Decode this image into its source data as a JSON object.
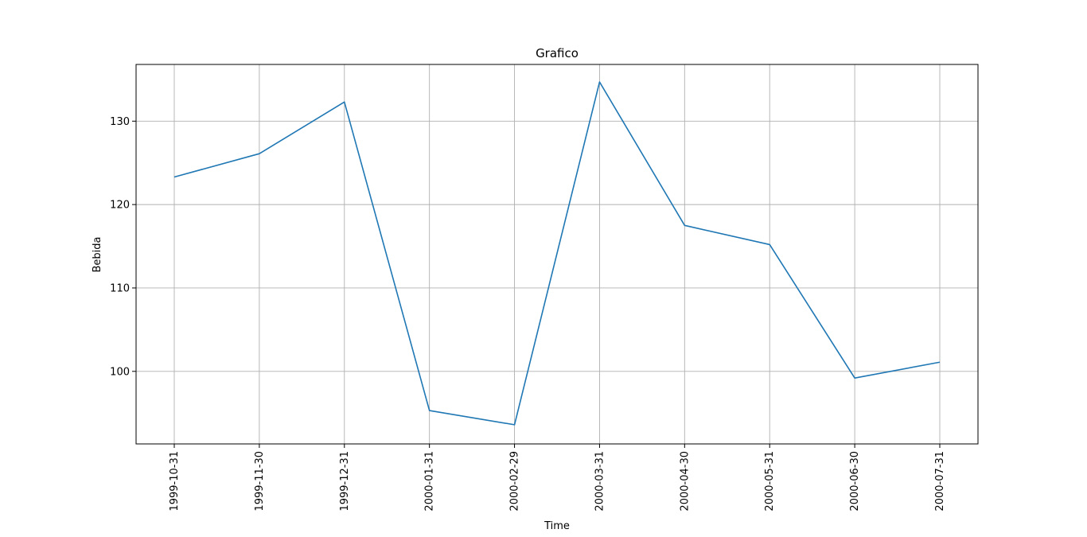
{
  "chart_data": {
    "type": "line",
    "title": "Grafico",
    "xlabel": "Time",
    "ylabel": "Bebida",
    "x": [
      "1999-10-31",
      "1999-11-30",
      "1999-12-31",
      "2000-01-31",
      "2000-02-29",
      "2000-03-31",
      "2000-04-30",
      "2000-05-31",
      "2000-06-30",
      "2000-07-31"
    ],
    "series": [
      {
        "values": [
          123.3,
          126.1,
          132.3,
          95.3,
          93.6,
          134.7,
          117.5,
          115.2,
          99.2,
          101.1
        ],
        "color": "#1f77b4"
      }
    ],
    "ylim": [
      91.3,
      136.8
    ],
    "yticks": [
      100,
      110,
      120,
      130
    ],
    "grid": true,
    "x_tick_rotation": 90
  }
}
